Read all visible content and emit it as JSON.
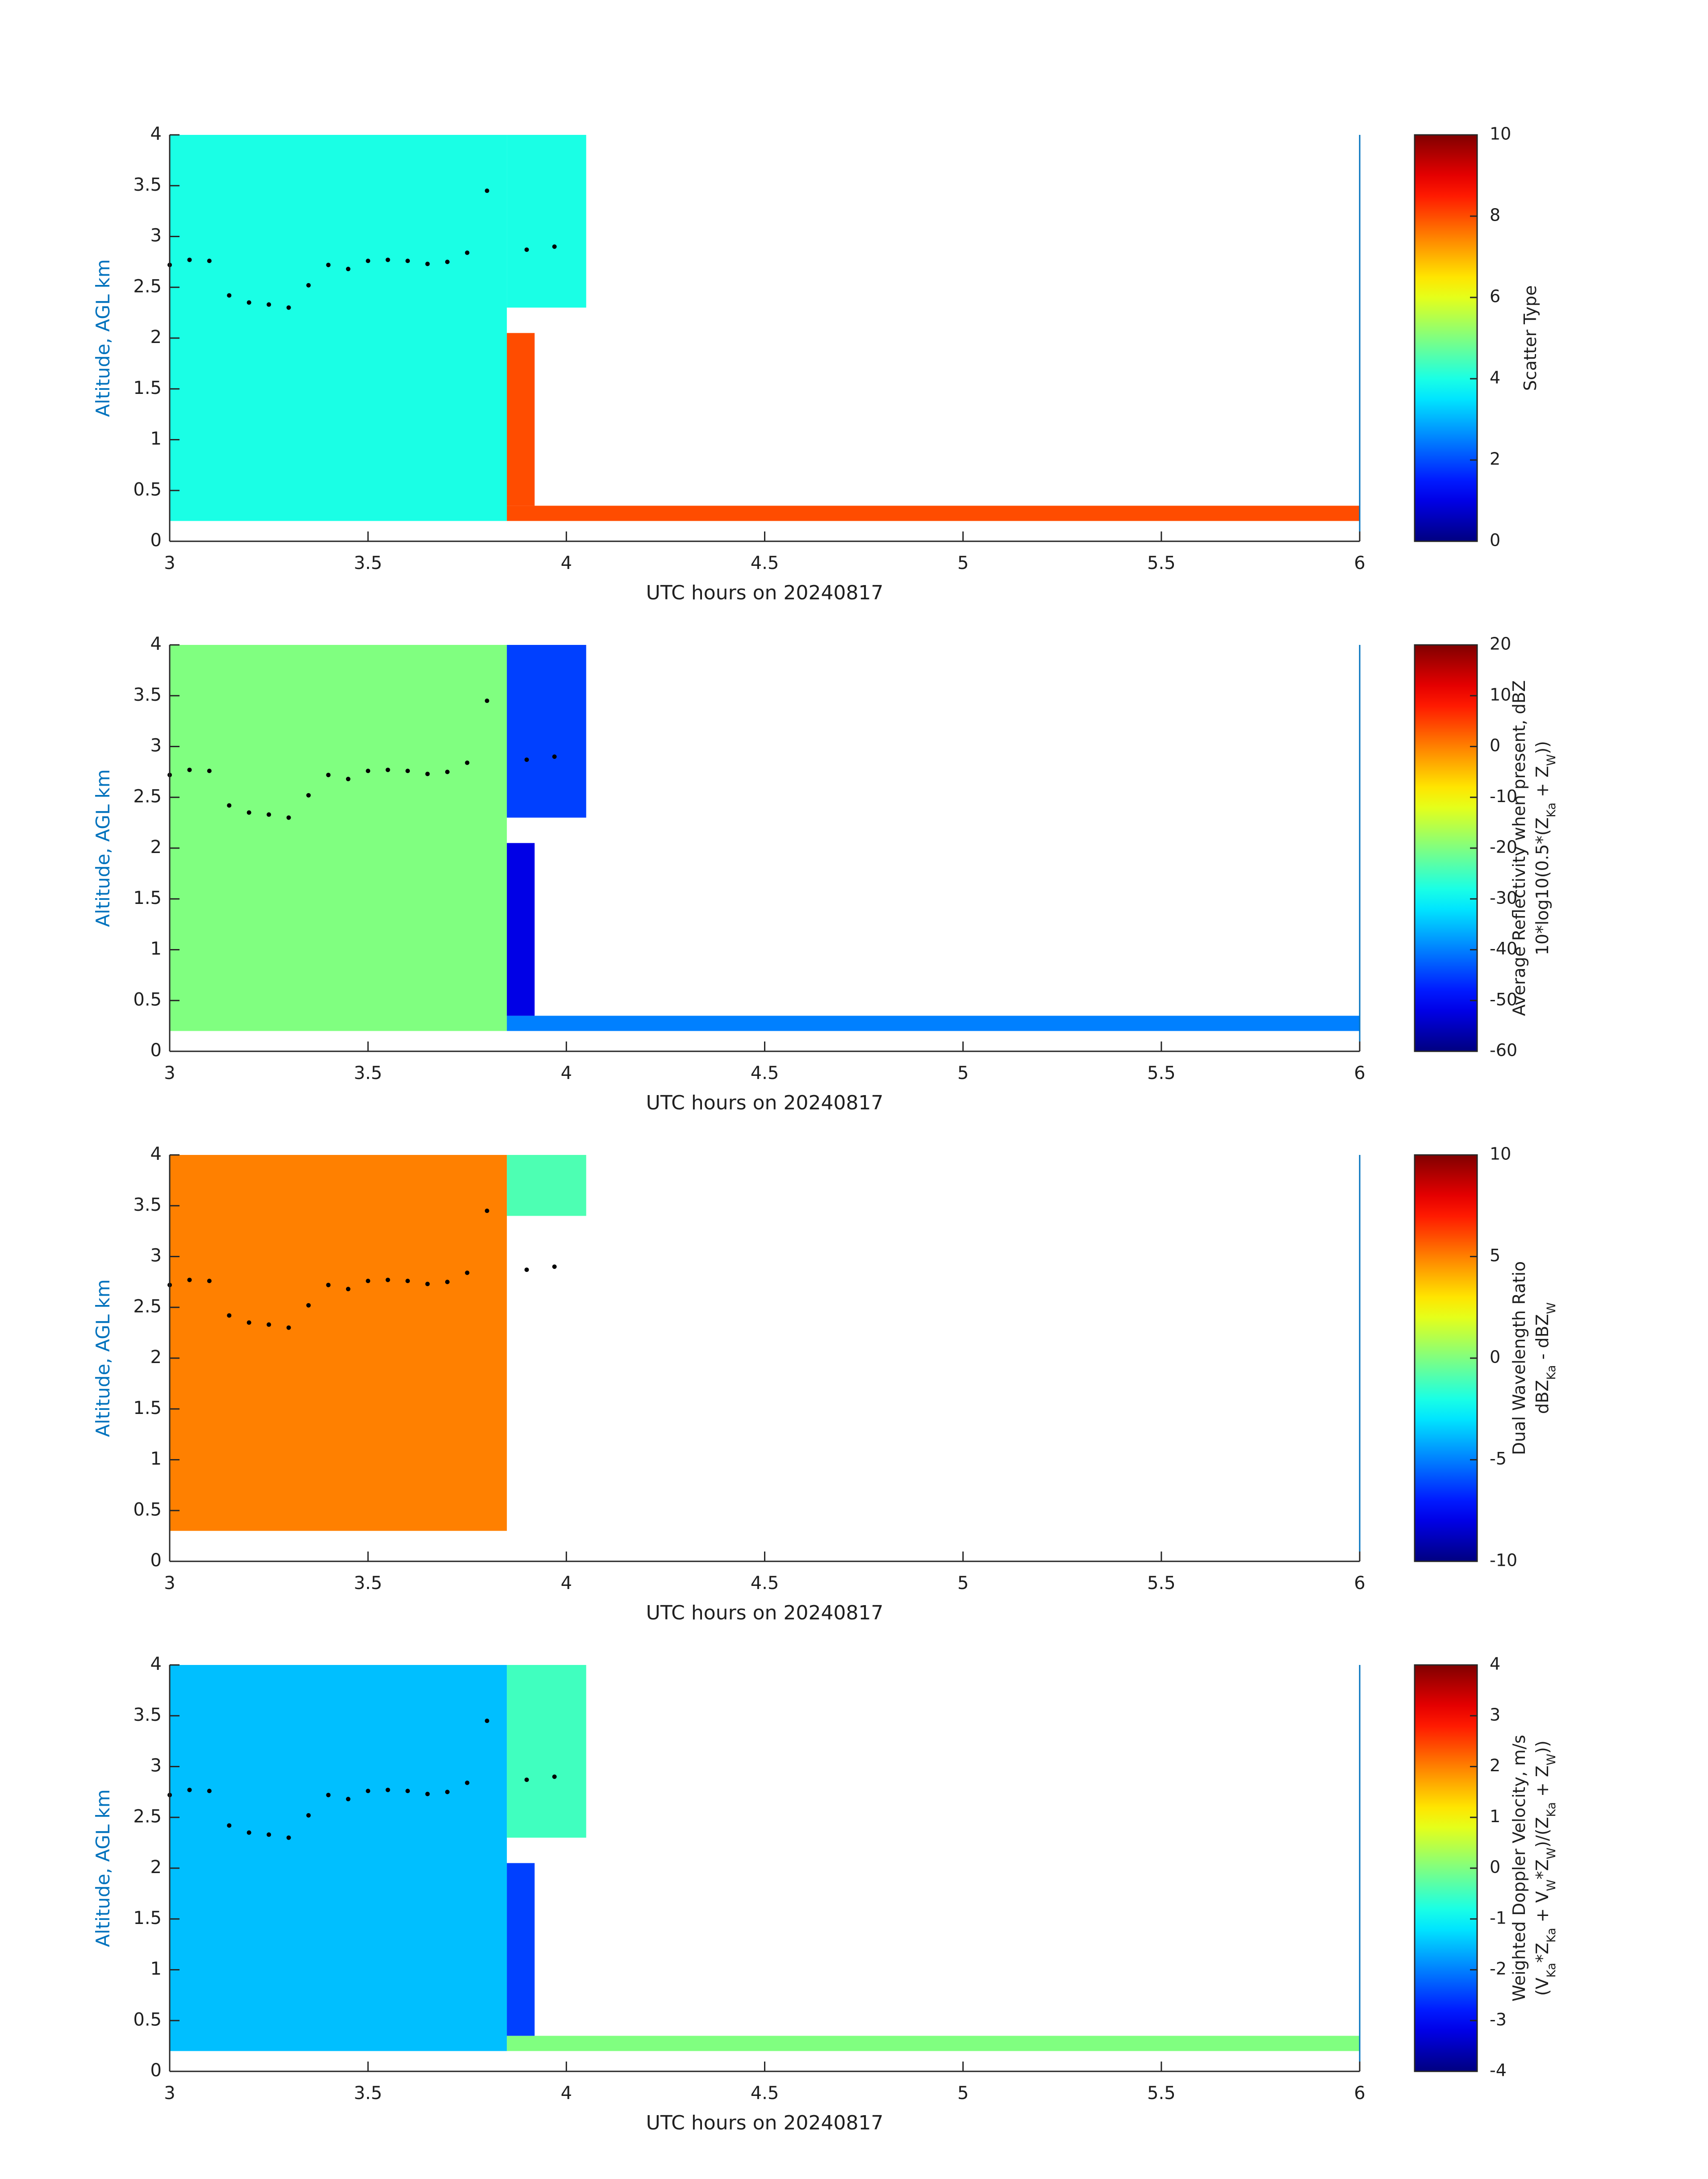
{
  "chart_data": [
    {
      "type": "heatmap",
      "xlabel": "UTC hours on 20240817",
      "ylabel": "Altitude, AGL km",
      "xlim": [
        3,
        6
      ],
      "ylim": [
        0,
        4
      ],
      "xticks": [
        "3",
        "3.5",
        "4",
        "4.5",
        "5",
        "5.5",
        "6"
      ],
      "yticks": [
        "0",
        "0.5",
        "1",
        "1.5",
        "2",
        "2.5",
        "3",
        "3.5",
        "4"
      ],
      "colorbar": {
        "label_lines": [
          "Scatter Type"
        ],
        "clim": [
          0,
          10
        ],
        "ticks": [
          "0",
          "2",
          "4",
          "6",
          "8",
          "10"
        ]
      },
      "regions": [
        {
          "field": "cloud",
          "x": [
            3.0,
            3.85
          ],
          "y": [
            0.2,
            4.0
          ],
          "value": 4.0
        },
        {
          "field": "upper",
          "x": [
            3.85,
            4.05
          ],
          "y": [
            2.3,
            4.0
          ],
          "value": 4.0
        },
        {
          "field": "precip",
          "x": [
            3.85,
            6.0
          ],
          "y": [
            0.2,
            0.35
          ],
          "value": 8.0
        },
        {
          "field": "tail",
          "x": [
            3.85,
            3.92
          ],
          "y": [
            0.35,
            2.05
          ],
          "value": 8.0
        }
      ],
      "cloud_top_line": {
        "x": [
          3.0,
          3.05,
          3.1,
          3.15,
          3.2,
          3.25,
          3.3,
          3.35,
          3.4,
          3.45,
          3.5,
          3.55,
          3.6,
          3.65,
          3.7,
          3.75,
          3.8,
          3.9,
          3.97
        ],
        "y": [
          2.72,
          2.77,
          2.76,
          2.42,
          2.35,
          2.33,
          2.3,
          2.52,
          2.72,
          2.68,
          2.76,
          2.77,
          2.76,
          2.73,
          2.75,
          2.84,
          3.45,
          2.87,
          2.9
        ]
      }
    },
    {
      "type": "heatmap",
      "xlabel": "UTC hours on 20240817",
      "ylabel": "Altitude, AGL km",
      "xlim": [
        3,
        6
      ],
      "ylim": [
        0,
        4
      ],
      "xticks": [
        "3",
        "3.5",
        "4",
        "4.5",
        "5",
        "5.5",
        "6"
      ],
      "yticks": [
        "0",
        "0.5",
        "1",
        "1.5",
        "2",
        "2.5",
        "3",
        "3.5",
        "4"
      ],
      "colorbar": {
        "label_lines": [
          "Average Reflectivity when present, dBZ",
          "10*log10(0.5*(Z_Ka + Z_W))"
        ],
        "clim": [
          -60,
          20
        ],
        "ticks": [
          "-60",
          "-50",
          "-40",
          "-30",
          "-20",
          "-10",
          "0",
          "10",
          "20"
        ]
      },
      "regions": [
        {
          "field": "cloud",
          "x": [
            3.0,
            3.85
          ],
          "y": [
            0.2,
            4.0
          ],
          "value": -20.0
        },
        {
          "field": "upper",
          "x": [
            3.85,
            4.05
          ],
          "y": [
            2.3,
            4.0
          ],
          "value": -45.0
        },
        {
          "field": "precip",
          "x": [
            3.85,
            6.0
          ],
          "y": [
            0.2,
            0.35
          ],
          "value": -40.0
        },
        {
          "field": "tail",
          "x": [
            3.85,
            3.92
          ],
          "y": [
            0.35,
            2.05
          ],
          "value": -52.0
        }
      ],
      "cloud_top_line": {
        "x": [
          3.0,
          3.05,
          3.1,
          3.15,
          3.2,
          3.25,
          3.3,
          3.35,
          3.4,
          3.45,
          3.5,
          3.55,
          3.6,
          3.65,
          3.7,
          3.75,
          3.8,
          3.9,
          3.97
        ],
        "y": [
          2.72,
          2.77,
          2.76,
          2.42,
          2.35,
          2.33,
          2.3,
          2.52,
          2.72,
          2.68,
          2.76,
          2.77,
          2.76,
          2.73,
          2.75,
          2.84,
          3.45,
          2.87,
          2.9
        ]
      }
    },
    {
      "type": "heatmap",
      "xlabel": "UTC hours on 20240817",
      "ylabel": "Altitude, AGL km",
      "xlim": [
        3,
        6
      ],
      "ylim": [
        0,
        4
      ],
      "xticks": [
        "3",
        "3.5",
        "4",
        "4.5",
        "5",
        "5.5",
        "6"
      ],
      "yticks": [
        "0",
        "0.5",
        "1",
        "1.5",
        "2",
        "2.5",
        "3",
        "3.5",
        "4"
      ],
      "colorbar": {
        "label_lines": [
          "Dual Wavelength Ratio",
          "dBZ_Ka - dBZ_W"
        ],
        "clim": [
          -10,
          10
        ],
        "ticks": [
          "-10",
          "-5",
          "0",
          "5",
          "10"
        ]
      },
      "regions": [
        {
          "field": "cloud",
          "x": [
            3.0,
            3.85
          ],
          "y": [
            0.3,
            4.0
          ],
          "value": 5.0
        },
        {
          "field": "upper",
          "x": [
            3.85,
            4.05
          ],
          "y": [
            3.4,
            4.0
          ],
          "value": -1.0
        }
      ],
      "cloud_top_line": {
        "x": [
          3.0,
          3.05,
          3.1,
          3.15,
          3.2,
          3.25,
          3.3,
          3.35,
          3.4,
          3.45,
          3.5,
          3.55,
          3.6,
          3.65,
          3.7,
          3.75,
          3.8,
          3.9,
          3.97
        ],
        "y": [
          2.72,
          2.77,
          2.76,
          2.42,
          2.35,
          2.33,
          2.3,
          2.52,
          2.72,
          2.68,
          2.76,
          2.77,
          2.76,
          2.73,
          2.75,
          2.84,
          3.45,
          2.87,
          2.9
        ]
      }
    },
    {
      "type": "heatmap",
      "xlabel": "UTC hours on 20240817",
      "ylabel": "Altitude, AGL km",
      "xlim": [
        3,
        6
      ],
      "ylim": [
        0,
        4
      ],
      "xticks": [
        "3",
        "3.5",
        "4",
        "4.5",
        "5",
        "5.5",
        "6"
      ],
      "yticks": [
        "0",
        "0.5",
        "1",
        "1.5",
        "2",
        "2.5",
        "3",
        "3.5",
        "4"
      ],
      "colorbar": {
        "label_lines": [
          "Weighted Doppler Velocity, m/s",
          "(V_Ka*Z_Ka + V_W*Z_W)/(Z_Ka + Z_W))"
        ],
        "clim": [
          -4,
          4
        ],
        "ticks": [
          "-4",
          "-3",
          "-2",
          "-1",
          "0",
          "1",
          "2",
          "3",
          "4"
        ]
      },
      "regions": [
        {
          "field": "cloud",
          "x": [
            3.0,
            3.85
          ],
          "y": [
            0.2,
            4.0
          ],
          "value": -1.5
        },
        {
          "field": "upper",
          "x": [
            3.85,
            4.05
          ],
          "y": [
            2.3,
            4.0
          ],
          "value": -0.5
        },
        {
          "field": "precip",
          "x": [
            3.85,
            6.0
          ],
          "y": [
            0.2,
            0.35
          ],
          "value": 0.0
        },
        {
          "field": "tail",
          "x": [
            3.85,
            3.92
          ],
          "y": [
            0.35,
            2.05
          ],
          "value": -2.5
        }
      ],
      "cloud_top_line": {
        "x": [
          3.0,
          3.05,
          3.1,
          3.15,
          3.2,
          3.25,
          3.3,
          3.35,
          3.4,
          3.45,
          3.5,
          3.55,
          3.6,
          3.65,
          3.7,
          3.75,
          3.8,
          3.9,
          3.97
        ],
        "y": [
          2.72,
          2.77,
          2.76,
          2.42,
          2.35,
          2.33,
          2.3,
          2.52,
          2.72,
          2.68,
          2.76,
          2.77,
          2.76,
          2.73,
          2.75,
          2.84,
          3.45,
          2.87,
          2.9
        ]
      }
    }
  ],
  "colors": {
    "axis_label": "#0072bd",
    "text": "#1f1f1f",
    "colormap": "jet"
  }
}
